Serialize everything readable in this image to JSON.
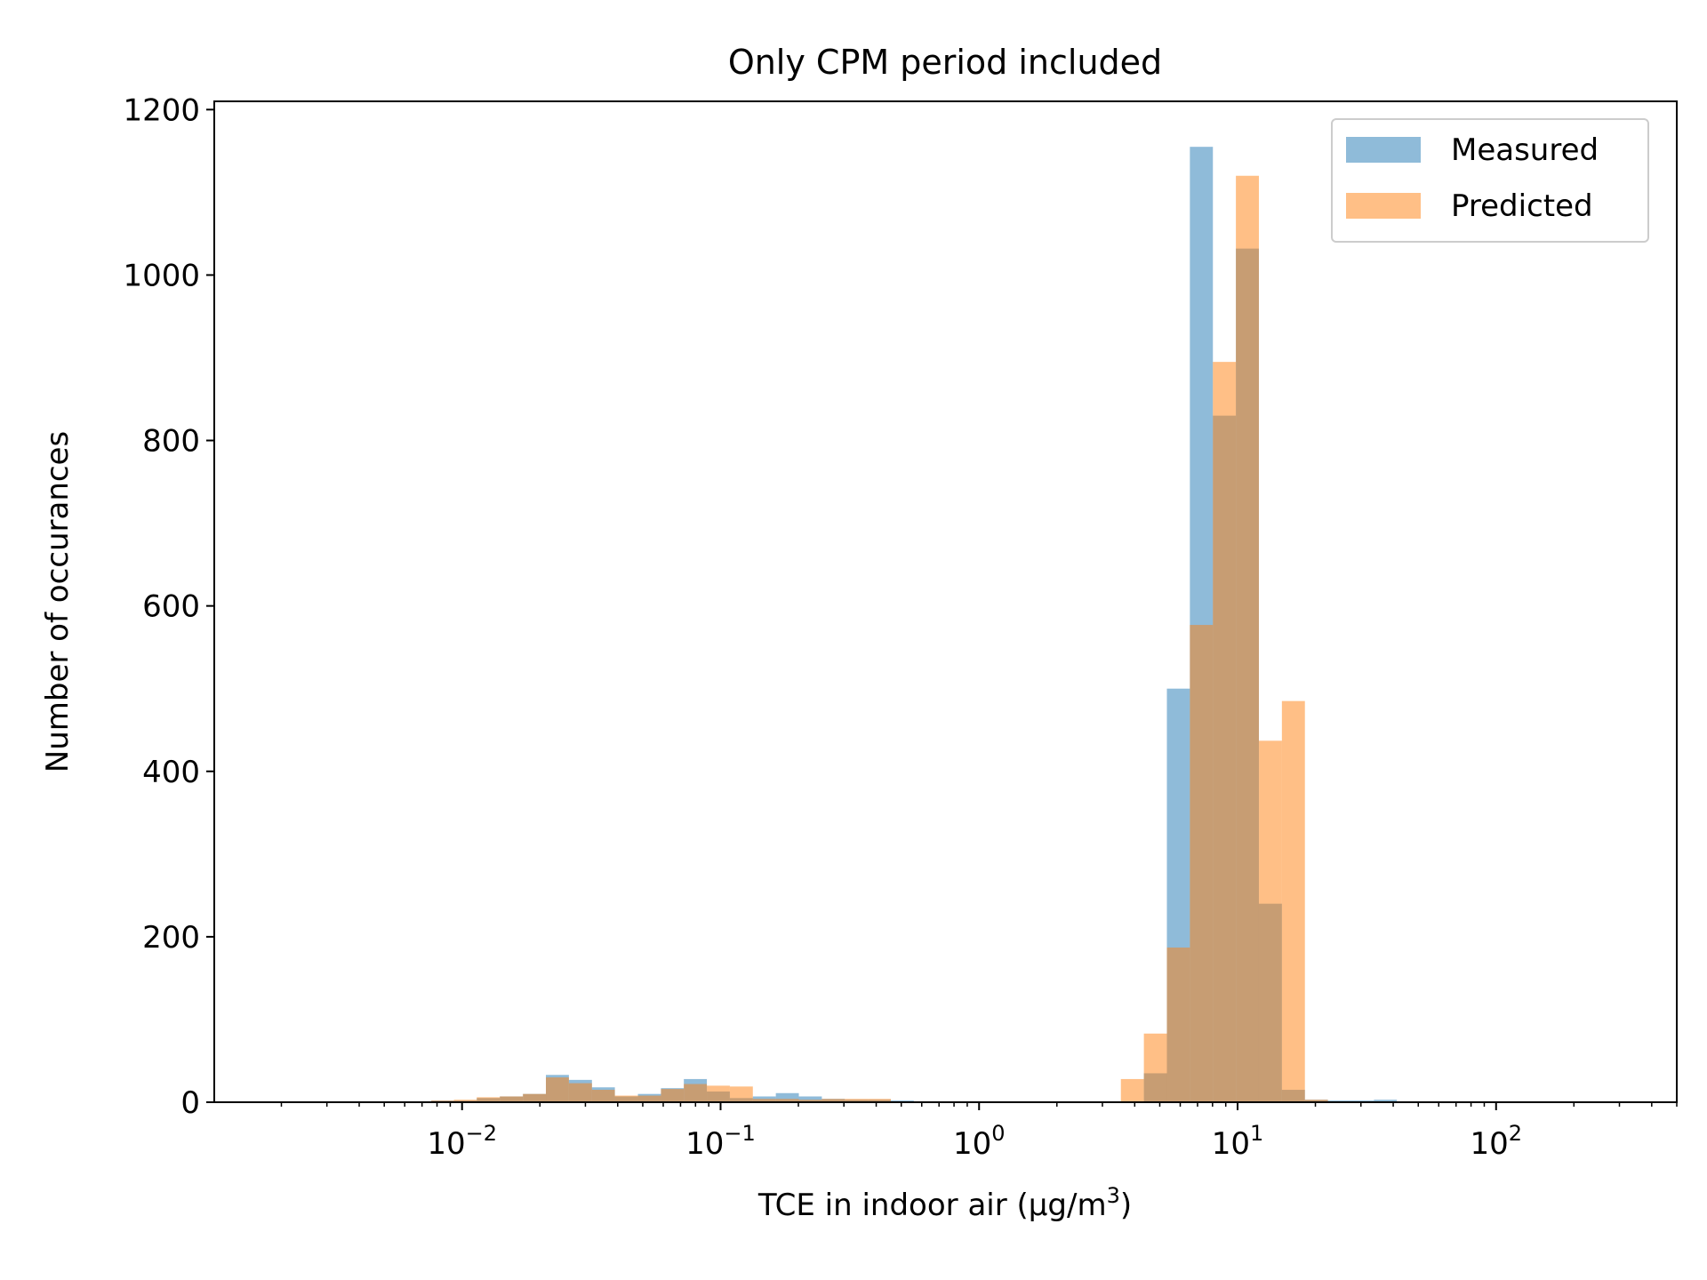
{
  "chart_data": {
    "type": "histogram",
    "title": "Only CPM period included",
    "xlabel": "TCE in indoor air (µg/m3)",
    "xlabel_parts": {
      "main": "TCE in indoor air (µg/m",
      "sup": "3",
      "close": ")"
    },
    "ylabel": "Number of occurances",
    "x_scale": "log",
    "xlim": [
      0.0011,
      500
    ],
    "ylim": [
      0,
      1210
    ],
    "y_ticks": [
      0,
      200,
      400,
      600,
      800,
      1000,
      1200
    ],
    "y_tick_labels": [
      "0",
      "200",
      "400",
      "600",
      "800",
      "1000",
      "1200"
    ],
    "x_ticks": [
      0.01,
      0.1,
      1,
      10,
      100
    ],
    "x_tick_labels": [
      {
        "base": "10",
        "exp": "−2"
      },
      {
        "base": "10",
        "exp": "−1"
      },
      {
        "base": "10",
        "exp": "0"
      },
      {
        "base": "10",
        "exp": "1"
      },
      {
        "base": "10",
        "exp": "2"
      }
    ],
    "grid": false,
    "legend_position": "top-right",
    "series": [
      {
        "name": "Measured",
        "color": "#1f77b4",
        "bins": [
          [
            0.0018,
            0.0022,
            1
          ],
          [
            0.0022,
            0.0027,
            1
          ],
          [
            0.0027,
            0.0033,
            1
          ],
          [
            0.0033,
            0.0041,
            1
          ],
          [
            0.0041,
            0.005,
            1
          ],
          [
            0.005,
            0.0062,
            1
          ],
          [
            0.0062,
            0.0076,
            1
          ],
          [
            0.0076,
            0.0093,
            2
          ],
          [
            0.0093,
            0.0114,
            2
          ],
          [
            0.0114,
            0.014,
            5
          ],
          [
            0.014,
            0.0172,
            7
          ],
          [
            0.0172,
            0.0211,
            10
          ],
          [
            0.0211,
            0.0259,
            33
          ],
          [
            0.0259,
            0.0318,
            27
          ],
          [
            0.0318,
            0.039,
            18
          ],
          [
            0.039,
            0.0479,
            7
          ],
          [
            0.0479,
            0.0588,
            10
          ],
          [
            0.0588,
            0.0721,
            17
          ],
          [
            0.0721,
            0.0885,
            28
          ],
          [
            0.0885,
            0.1086,
            13
          ],
          [
            0.1086,
            0.1333,
            5
          ],
          [
            0.1333,
            0.1636,
            7
          ],
          [
            0.1636,
            0.2008,
            11
          ],
          [
            0.2008,
            0.2465,
            7
          ],
          [
            0.2465,
            0.3025,
            4
          ],
          [
            0.3025,
            0.3713,
            3
          ],
          [
            0.3713,
            0.4557,
            3
          ],
          [
            0.4557,
            0.5593,
            2
          ],
          [
            0.5593,
            0.6865,
            1
          ],
          [
            0.6865,
            0.8426,
            1
          ],
          [
            0.8426,
            1.0342,
            1
          ],
          [
            1.0342,
            1.2694,
            1
          ],
          [
            1.2694,
            1.558,
            1
          ],
          [
            1.558,
            1.9123,
            1
          ],
          [
            1.9123,
            2.3472,
            1
          ],
          [
            2.3472,
            2.881,
            1
          ],
          [
            2.881,
            3.5361,
            1
          ],
          [
            3.5361,
            4.3402,
            1
          ],
          [
            4.3402,
            5.3273,
            35
          ],
          [
            5.3273,
            6.5387,
            500
          ],
          [
            6.5387,
            8.0257,
            1155
          ],
          [
            8.0257,
            9.8508,
            830
          ],
          [
            9.8508,
            12.091,
            1032
          ],
          [
            12.091,
            14.84,
            240
          ],
          [
            14.84,
            18.215,
            15
          ],
          [
            18.215,
            22.357,
            3
          ],
          [
            22.357,
            27.441,
            2
          ],
          [
            27.441,
            33.681,
            2
          ],
          [
            33.681,
            41.34,
            3
          ],
          [
            41.34,
            50.742,
            1
          ]
        ]
      },
      {
        "name": "Predicted",
        "color": "#ff7f0e",
        "bins": [
          [
            0.0076,
            0.0093,
            2
          ],
          [
            0.0093,
            0.0114,
            3
          ],
          [
            0.0114,
            0.014,
            6
          ],
          [
            0.014,
            0.0172,
            7
          ],
          [
            0.0172,
            0.0211,
            10
          ],
          [
            0.0211,
            0.0259,
            30
          ],
          [
            0.0259,
            0.0318,
            23
          ],
          [
            0.0318,
            0.039,
            15
          ],
          [
            0.039,
            0.0479,
            8
          ],
          [
            0.0479,
            0.0588,
            8
          ],
          [
            0.0588,
            0.0721,
            16
          ],
          [
            0.0721,
            0.0885,
            22
          ],
          [
            0.0885,
            0.1086,
            20
          ],
          [
            0.1086,
            0.1333,
            19
          ],
          [
            0.1333,
            0.1636,
            4
          ],
          [
            0.1636,
            0.2008,
            4
          ],
          [
            0.2008,
            0.2465,
            3
          ],
          [
            0.2465,
            0.3025,
            4
          ],
          [
            0.3025,
            0.3713,
            4
          ],
          [
            0.3713,
            0.4557,
            4
          ],
          [
            1.558,
            1.9123,
            1
          ],
          [
            1.9123,
            2.3472,
            1
          ],
          [
            2.3472,
            2.881,
            1
          ],
          [
            2.881,
            3.5361,
            1
          ],
          [
            3.5361,
            4.3402,
            28
          ],
          [
            4.3402,
            5.3273,
            83
          ],
          [
            5.3273,
            6.5387,
            187
          ],
          [
            6.5387,
            8.0257,
            577
          ],
          [
            8.0257,
            9.8508,
            895
          ],
          [
            9.8508,
            12.091,
            1120
          ],
          [
            12.091,
            14.84,
            437
          ],
          [
            14.84,
            18.215,
            485
          ],
          [
            18.215,
            22.357,
            3
          ],
          [
            22.357,
            27.441,
            1
          ]
        ]
      }
    ]
  }
}
